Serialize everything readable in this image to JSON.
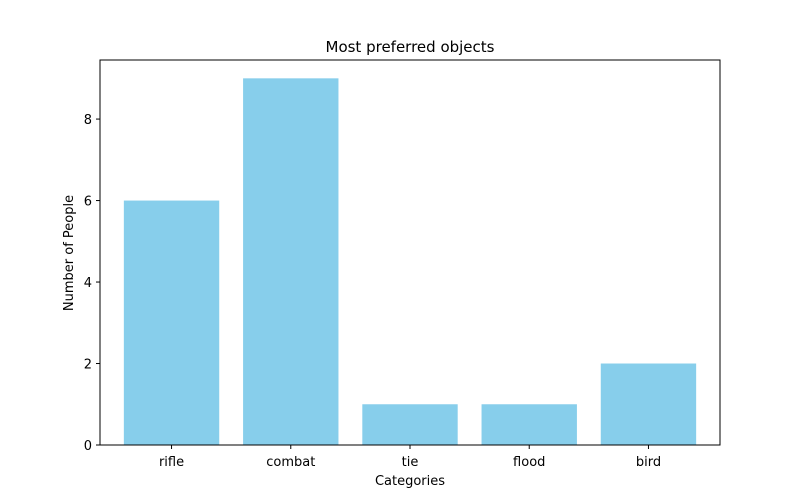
{
  "chart_data": {
    "type": "bar",
    "title": "Most preferred objects",
    "xlabel": "Categories",
    "ylabel": "Number of People",
    "categories": [
      "rifle",
      "combat",
      "tie",
      "flood",
      "bird"
    ],
    "values": [
      6,
      9,
      1,
      1,
      2
    ],
    "ylim": [
      0,
      9.45
    ],
    "yticks": [
      0,
      2,
      4,
      6,
      8
    ],
    "grid": false,
    "legend": "none",
    "bar_color": "#87ceeb"
  }
}
